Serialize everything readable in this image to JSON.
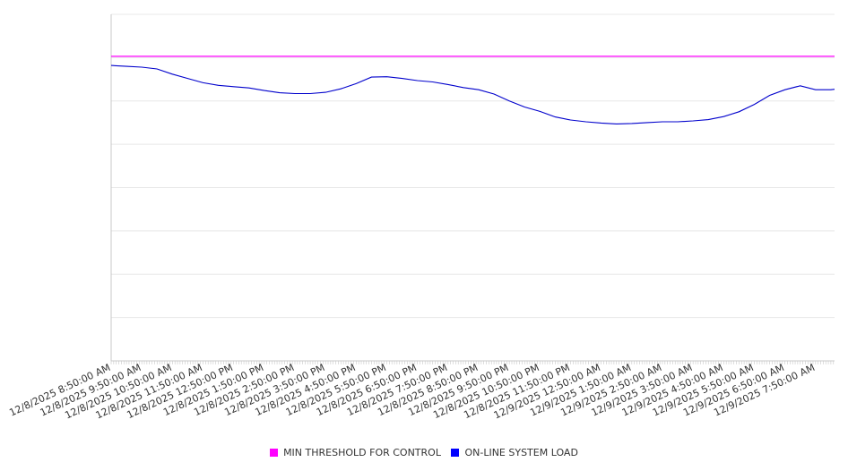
{
  "chart_data": {
    "type": "line",
    "title": "",
    "xlabel": "",
    "ylabel": "",
    "x_unit": "hours since 12/8/2025 8:50:00 AM",
    "xlim": [
      0,
      23.62
    ],
    "ylim": [
      0,
      8
    ],
    "y_gridlines": [
      0,
      1,
      2,
      3,
      4,
      5,
      6,
      7,
      8
    ],
    "y_tick_labels_shown": false,
    "grid": true,
    "legend_position": "bottom",
    "x_tick_labels": [
      "12/8/2025 8:50:00 AM",
      "12/8/2025 9:50:00 AM",
      "12/8/2025 10:50:00 AM",
      "12/8/2025 11:50:00 AM",
      "12/8/2025 12:50:00 PM",
      "12/8/2025 1:50:00 PM",
      "12/8/2025 2:50:00 PM",
      "12/8/2025 3:50:00 PM",
      "12/8/2025 4:50:00 PM",
      "12/8/2025 5:50:00 PM",
      "12/8/2025 6:50:00 PM",
      "12/8/2025 7:50:00 PM",
      "12/8/2025 8:50:00 PM",
      "12/8/2025 9:50:00 PM",
      "12/8/2025 10:50:00 PM",
      "12/8/2025 11:50:00 PM",
      "12/9/2025 12:50:00 AM",
      "12/9/2025 1:50:00 AM",
      "12/9/2025 2:50:00 AM",
      "12/9/2025 3:50:00 AM",
      "12/9/2025 4:50:00 AM",
      "12/9/2025 5:50:00 AM",
      "12/9/2025 6:50:00 AM",
      "12/9/2025 7:50:00 AM"
    ],
    "series": [
      {
        "name": "MIN THRESHOLD FOR CONTROL",
        "color": "#ff00ff",
        "x": [
          0,
          23.62
        ],
        "values": [
          7.03,
          7.03
        ]
      },
      {
        "name": "ON-LINE SYSTEM LOAD",
        "color": "#0000cc",
        "x": [
          0,
          0.5,
          1,
          1.5,
          2,
          2.5,
          3,
          3.5,
          4,
          4.5,
          5,
          5.5,
          6,
          6.5,
          7,
          7.5,
          8,
          8.5,
          9,
          9.5,
          10,
          10.5,
          11,
          11.5,
          12,
          12.5,
          13,
          13.5,
          14,
          14.5,
          15,
          15.5,
          16,
          16.5,
          17,
          17.5,
          18,
          18.5,
          19,
          19.5,
          20,
          20.5,
          21,
          21.5,
          22,
          22.5,
          23,
          23.5,
          23.62
        ],
        "values": [
          6.82,
          6.8,
          6.78,
          6.74,
          6.62,
          6.52,
          6.42,
          6.36,
          6.33,
          6.3,
          6.24,
          6.19,
          6.17,
          6.17,
          6.2,
          6.28,
          6.4,
          6.55,
          6.56,
          6.52,
          6.47,
          6.44,
          6.38,
          6.31,
          6.26,
          6.16,
          6.0,
          5.86,
          5.76,
          5.63,
          5.56,
          5.52,
          5.49,
          5.47,
          5.48,
          5.5,
          5.52,
          5.52,
          5.54,
          5.57,
          5.64,
          5.75,
          5.92,
          6.13,
          6.26,
          6.35,
          6.26,
          6.26,
          6.27
        ]
      }
    ]
  }
}
